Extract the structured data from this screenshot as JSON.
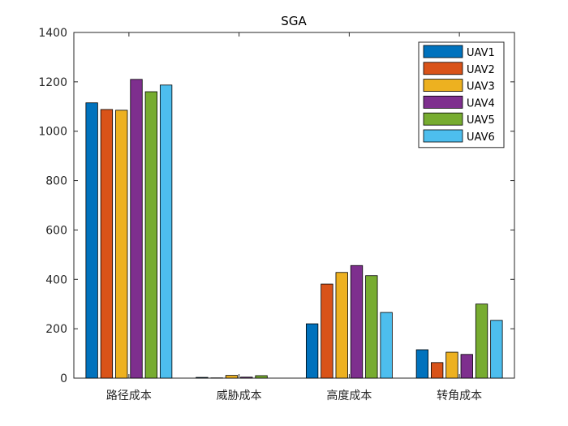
{
  "chart_data": {
    "type": "bar",
    "title": "SGA",
    "xlabel": "",
    "ylabel": "",
    "categories": [
      "路径成本",
      "威胁成本",
      "高度成本",
      "转角成本"
    ],
    "ylim": [
      0,
      1400
    ],
    "yticks": [
      0,
      200,
      400,
      600,
      800,
      1000,
      1200,
      1400
    ],
    "grid": false,
    "legend_position": "top-right",
    "series": [
      {
        "name": "UAV1",
        "color": "#0072BD",
        "values": [
          1115,
          3,
          220,
          115
        ]
      },
      {
        "name": "UAV2",
        "color": "#D95319",
        "values": [
          1088,
          1,
          381,
          63
        ]
      },
      {
        "name": "UAV3",
        "color": "#EDB120",
        "values": [
          1085,
          11,
          428,
          105
        ]
      },
      {
        "name": "UAV4",
        "color": "#7E2F8E",
        "values": [
          1210,
          4,
          456,
          96
        ]
      },
      {
        "name": "UAV5",
        "color": "#77AC30",
        "values": [
          1160,
          10,
          415,
          300
        ]
      },
      {
        "name": "UAV6",
        "color": "#4DBEEE",
        "values": [
          1187,
          0,
          266,
          234
        ]
      }
    ]
  }
}
